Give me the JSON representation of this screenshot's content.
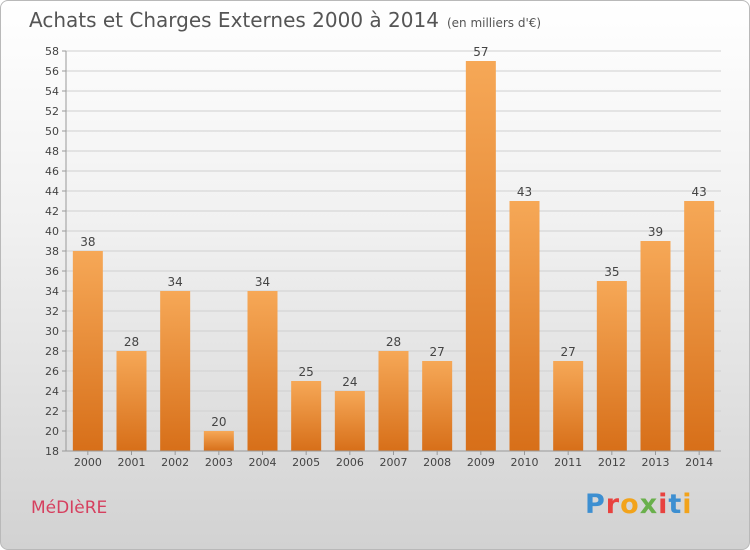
{
  "title": "Achats et Charges Externes 2000 à 2014",
  "unit": "(en milliers d'€)",
  "commune": "MéDIèRE",
  "brand": {
    "name": "Proxiti",
    "letters": [
      "P",
      "r",
      "o",
      "x",
      "i",
      "t",
      "i"
    ],
    "colors": [
      "#3d8fd1",
      "#e8423f",
      "#f2a31b",
      "#6ab04c",
      "#e8423f",
      "#3d8fd1",
      "#f2a31b"
    ]
  },
  "colors": {
    "bar_light": "#f6a857",
    "bar_dark": "#d76f19",
    "grid": "#d0d0d0",
    "axis": "#999999",
    "text": "#444444"
  },
  "chart_data": {
    "type": "bar",
    "title": "Achats et Charges Externes 2000 à 2014",
    "ylabel": "en milliers d'€",
    "categories": [
      "2000",
      "2001",
      "2002",
      "2003",
      "2004",
      "2005",
      "2006",
      "2007",
      "2008",
      "2009",
      "2010",
      "2011",
      "2012",
      "2013",
      "2014"
    ],
    "values": [
      38,
      28,
      34,
      20,
      34,
      25,
      24,
      28,
      27,
      57,
      43,
      27,
      35,
      39,
      43
    ],
    "ylim": [
      18,
      58
    ],
    "yticks": [
      18,
      20,
      22,
      24,
      26,
      28,
      30,
      32,
      34,
      36,
      38,
      40,
      42,
      44,
      46,
      48,
      50,
      52,
      54,
      56,
      58
    ],
    "grid": true
  }
}
